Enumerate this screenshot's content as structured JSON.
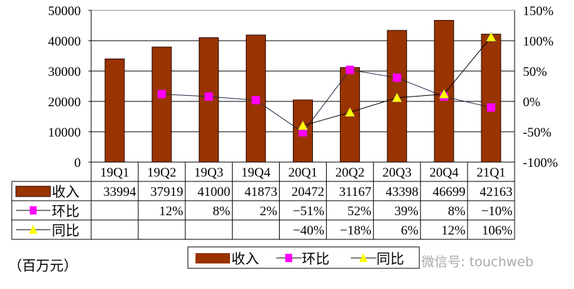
{
  "chart_data": {
    "type": "bar",
    "categories": [
      "19Q1",
      "19Q2",
      "19Q3",
      "19Q4",
      "20Q1",
      "20Q2",
      "20Q3",
      "20Q4",
      "21Q1"
    ],
    "series": [
      {
        "name": "收入",
        "kind": "bar",
        "axis": "left",
        "color": "#993300",
        "values": [
          33994,
          37919,
          41000,
          41873,
          20472,
          31167,
          43398,
          46699,
          42163
        ],
        "labels": [
          "33994",
          "37919",
          "41000",
          "41873",
          "20472",
          "31167",
          "43398",
          "46699",
          "42163"
        ]
      },
      {
        "name": "环比",
        "kind": "line",
        "axis": "right",
        "marker": "square",
        "color": "#FF00FF",
        "line_color": "#1F2A44",
        "values": [
          null,
          12,
          8,
          2,
          -51,
          52,
          39,
          8,
          -10
        ],
        "labels": [
          "",
          "12%",
          "8%",
          "2%",
          "-51%",
          "52%",
          "39%",
          "8%",
          "-10%"
        ]
      },
      {
        "name": "同比",
        "kind": "line",
        "axis": "right",
        "marker": "triangle",
        "color": "#FFFF00",
        "line_color": "#000000",
        "values": [
          null,
          null,
          null,
          null,
          -40,
          -18,
          6,
          12,
          106
        ],
        "labels": [
          "",
          "",
          "",
          "",
          "-40%",
          "-18%",
          "6%",
          "12%",
          "106%"
        ]
      }
    ],
    "ylim": [
      0,
      50000
    ],
    "y_ticks": [
      "0",
      "10000",
      "20000",
      "30000",
      "40000",
      "50000"
    ],
    "y2lim": [
      -100,
      150
    ],
    "y2_ticks": [
      "-100%",
      "-50%",
      "0%",
      "50%",
      "100%",
      "150%"
    ],
    "grid": true,
    "legend": "bottom",
    "unit_note": "（百万元）",
    "watermark": "微信号: touchweb"
  }
}
